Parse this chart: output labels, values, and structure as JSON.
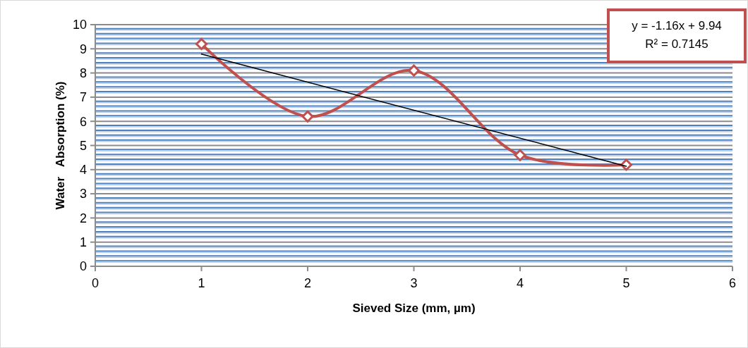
{
  "chart_data": {
    "type": "line",
    "xlabel": "Sieved Size (mm, µm)",
    "ylabel": "Water   Absorption (%)",
    "x": [
      1,
      2,
      3,
      4,
      5
    ],
    "series": [
      {
        "color": "#c0504d",
        "values": [
          9.2,
          6.2,
          8.1,
          4.6,
          4.2
        ],
        "marker": "diamond"
      },
      {
        "type": "line",
        "x": [
          1,
          5
        ],
        "color": "#000000",
        "values": [
          8.78,
          4.14
        ],
        "marker": "none"
      }
    ],
    "xlim": [
      0,
      6
    ],
    "xticks": [
      0,
      1,
      2,
      3,
      4,
      5,
      6
    ],
    "ylim": [
      0,
      10
    ],
    "yticks": [
      0,
      {
        "value": 0.2,
        "label": null
      },
      {
        "value": 0.4,
        "label": null
      },
      {
        "value": 0.6,
        "label": null
      },
      {
        "value": 0.8,
        "label": null
      },
      1,
      {
        "value": 1.2,
        "label": null
      },
      {
        "value": 1.4,
        "label": null
      },
      {
        "value": 1.6,
        "label": null
      },
      {
        "value": 1.8,
        "label": null
      },
      2,
      {
        "value": 2.2,
        "label": null
      },
      {
        "value": 2.4,
        "label": null
      },
      {
        "value": 2.6,
        "label": null
      },
      {
        "value": 2.8,
        "label": null
      },
      3,
      {
        "value": 3.2,
        "label": null
      },
      {
        "value": 3.4,
        "label": null
      },
      {
        "value": 3.6,
        "label": null
      },
      {
        "value": 3.8,
        "label": null
      },
      4,
      {
        "value": 4.2,
        "label": null
      },
      {
        "value": 4.4,
        "label": null
      },
      {
        "value": 4.6,
        "label": null
      },
      {
        "value": 4.8,
        "label": null
      },
      5,
      {
        "value": 5.2,
        "label": null
      },
      {
        "value": 5.4,
        "label": null
      },
      {
        "value": 5.6,
        "label": null
      },
      {
        "value": 5.8,
        "label": null
      },
      6,
      {
        "value": 6.2,
        "label": null
      },
      {
        "value": 6.4,
        "label": null
      },
      {
        "value": 6.6,
        "label": null
      },
      {
        "value": 6.8,
        "label": null
      },
      7,
      {
        "value": 7.2,
        "label": null
      },
      {
        "value": 7.4,
        "label": null
      },
      {
        "value": 7.6,
        "label": null
      },
      {
        "value": 7.8,
        "label": null
      },
      8,
      {
        "value": 8.2,
        "label": null
      },
      {
        "value": 8.4,
        "label": null
      },
      {
        "value": 8.6,
        "label": null
      },
      {
        "value": 8.8,
        "label": null
      },
      9,
      {
        "value": 9.2,
        "label": null
      },
      {
        "value": 9.4,
        "label": null
      },
      {
        "value": 9.6,
        "label": null
      },
      {
        "value": 9.8,
        "label": null
      },
      10
    ],
    "grid": "y",
    "annotations": [
      "y = -1.16x + 9.94",
      "R² = 0.7145"
    ]
  }
}
